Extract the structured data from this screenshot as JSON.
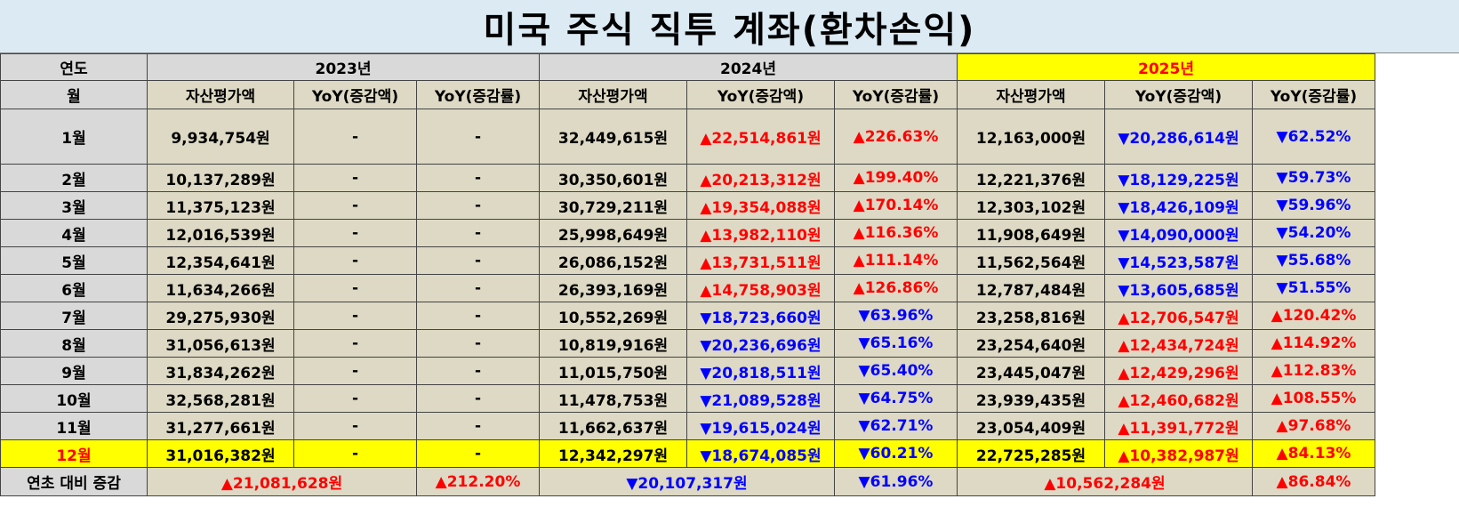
{
  "title": "미국 주식 직투 계좌(환차손익)",
  "labels": {
    "year": "연도",
    "month": "월",
    "summary": "연초 대비 증감"
  },
  "years": [
    "2023년",
    "2024년",
    "2025년"
  ],
  "columns": [
    "자산평가액",
    "YoY(증감액)",
    "YoY(증감률)"
  ],
  "rows": [
    {
      "month": "1월",
      "y2023": "9,934,754원",
      "d2023": "-",
      "p2023": "-",
      "y2024": "32,449,615원",
      "d2024": "▲22,514,861원",
      "p2024": "▲226.63%",
      "y2025": "12,163,000원",
      "d2025": "▼20,286,614원",
      "p2025": "▼62.52%"
    },
    {
      "month": "2월",
      "y2023": "10,137,289원",
      "d2023": "-",
      "p2023": "-",
      "y2024": "30,350,601원",
      "d2024": "▲20,213,312원",
      "p2024": "▲199.40%",
      "y2025": "12,221,376원",
      "d2025": "▼18,129,225원",
      "p2025": "▼59.73%"
    },
    {
      "month": "3월",
      "y2023": "11,375,123원",
      "d2023": "-",
      "p2023": "-",
      "y2024": "30,729,211원",
      "d2024": "▲19,354,088원",
      "p2024": "▲170.14%",
      "y2025": "12,303,102원",
      "d2025": "▼18,426,109원",
      "p2025": "▼59.96%"
    },
    {
      "month": "4월",
      "y2023": "12,016,539원",
      "d2023": "-",
      "p2023": "-",
      "y2024": "25,998,649원",
      "d2024": "▲13,982,110원",
      "p2024": "▲116.36%",
      "y2025": "11,908,649원",
      "d2025": "▼14,090,000원",
      "p2025": "▼54.20%"
    },
    {
      "month": "5월",
      "y2023": "12,354,641원",
      "d2023": "-",
      "p2023": "-",
      "y2024": "26,086,152원",
      "d2024": "▲13,731,511원",
      "p2024": "▲111.14%",
      "y2025": "11,562,564원",
      "d2025": "▼14,523,587원",
      "p2025": "▼55.68%"
    },
    {
      "month": "6월",
      "y2023": "11,634,266원",
      "d2023": "-",
      "p2023": "-",
      "y2024": "26,393,169원",
      "d2024": "▲14,758,903원",
      "p2024": "▲126.86%",
      "y2025": "12,787,484원",
      "d2025": "▼13,605,685원",
      "p2025": "▼51.55%"
    },
    {
      "month": "7월",
      "y2023": "29,275,930원",
      "d2023": "-",
      "p2023": "-",
      "y2024": "10,552,269원",
      "d2024": "▼18,723,660원",
      "p2024": "▼63.96%",
      "y2025": "23,258,816원",
      "d2025": "▲12,706,547원",
      "p2025": "▲120.42%"
    },
    {
      "month": "8월",
      "y2023": "31,056,613원",
      "d2023": "-",
      "p2023": "-",
      "y2024": "10,819,916원",
      "d2024": "▼20,236,696원",
      "p2024": "▼65.16%",
      "y2025": "23,254,640원",
      "d2025": "▲12,434,724원",
      "p2025": "▲114.92%"
    },
    {
      "month": "9월",
      "y2023": "31,834,262원",
      "d2023": "-",
      "p2023": "-",
      "y2024": "11,015,750원",
      "d2024": "▼20,818,511원",
      "p2024": "▼65.40%",
      "y2025": "23,445,047원",
      "d2025": "▲12,429,296원",
      "p2025": "▲112.83%"
    },
    {
      "month": "10월",
      "y2023": "32,568,281원",
      "d2023": "-",
      "p2023": "-",
      "y2024": "11,478,753원",
      "d2024": "▼21,089,528원",
      "p2024": "▼64.75%",
      "y2025": "23,939,435원",
      "d2025": "▲12,460,682원",
      "p2025": "▲108.55%"
    },
    {
      "month": "11월",
      "y2023": "31,277,661원",
      "d2023": "-",
      "p2023": "-",
      "y2024": "11,662,637원",
      "d2024": "▼19,615,024원",
      "p2024": "▼62.71%",
      "y2025": "23,054,409원",
      "d2025": "▲11,391,772원",
      "p2025": "▲97.68%"
    },
    {
      "month": "12월",
      "y2023": "31,016,382원",
      "d2023": "-",
      "p2023": "-",
      "y2024": "12,342,297원",
      "d2024": "▼18,674,085원",
      "p2024": "▼60.21%",
      "y2025": "22,725,285원",
      "d2025": "▲10,382,987원",
      "p2025": "▲84.13%"
    }
  ],
  "summary": {
    "d2023": "▲21,081,628원",
    "p2023": "▲212.20%",
    "d2024": "▼20,107,317원",
    "p2024": "▼61.96%",
    "d2025": "▲10,562,284원",
    "p2025": "▲86.84%"
  },
  "colors": {
    "up": "#ff0000",
    "down": "#0000ff",
    "highlight": "#ffff00",
    "cell": "#ddd9c4",
    "label": "#d9d9d9",
    "title_bg": "#dbeaf3"
  }
}
